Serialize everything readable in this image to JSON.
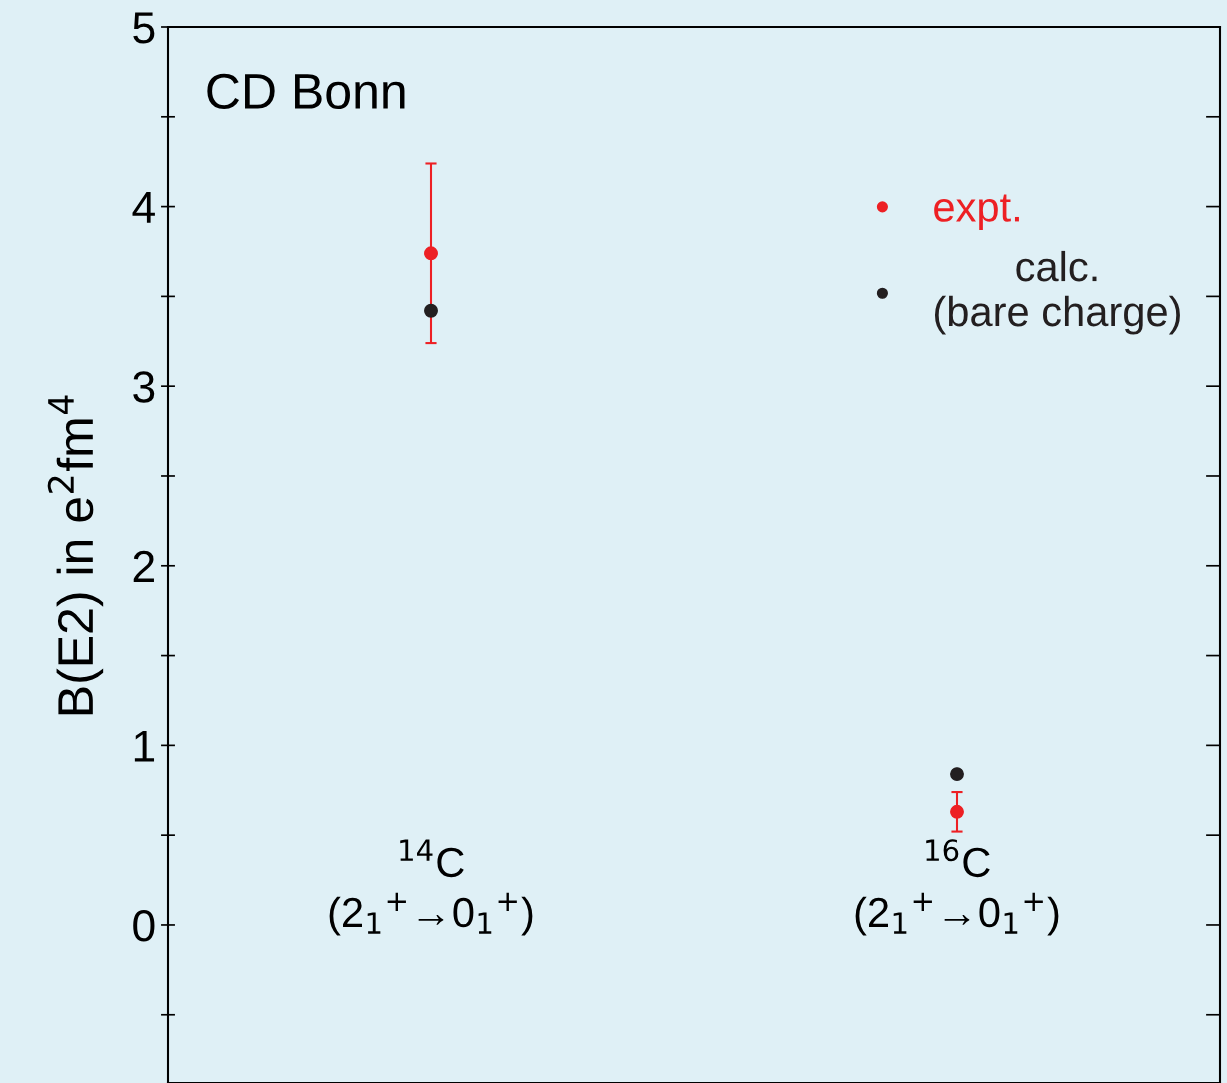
{
  "chart_data": {
    "type": "scatter",
    "categories": [
      "$^{14}$C\n(2$_{1}$$^{+}$→0$_{1}$$^{+}$)",
      "$^{16}$C\n(2$_{1}$$^{+}$→0$_{1}$$^{+}$)"
    ],
    "series": [
      {
        "name": "expt.",
        "color": "#ed2024",
        "values": [
          3.74,
          0.63
        ],
        "errors": [
          0.5,
          0.11
        ]
      },
      {
        "name": "calc.\n(bare charge)",
        "color": "#231f20",
        "values": [
          3.42,
          0.84
        ]
      }
    ],
    "ylabel": "B(E2) in e$^{2}$fm$^{4}$",
    "annotations": [
      "CD Bonn"
    ],
    "ylim": [
      -0.88,
      5
    ],
    "yticks": [
      {
        "value": -0.5,
        "label": null
      },
      0,
      {
        "value": 0.5,
        "label": null
      },
      1,
      {
        "value": 1.5,
        "label": null
      },
      2,
      {
        "value": 2.5,
        "label": null
      },
      3,
      {
        "value": 3.5,
        "label": null
      },
      4,
      {
        "value": 4.5,
        "label": null
      },
      5
    ],
    "marker": "circle",
    "grid": false,
    "legend": "top right"
  }
}
